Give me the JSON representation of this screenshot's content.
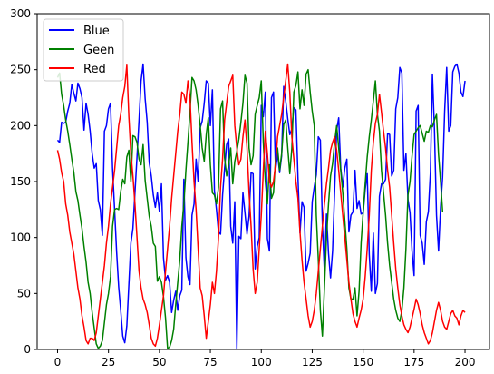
{
  "chart_data": {
    "type": "line",
    "x_start": 0,
    "x_step": 1,
    "xlim": [
      -10,
      212
    ],
    "ylim": [
      0,
      300
    ],
    "xticks": [
      0,
      25,
      50,
      75,
      100,
      125,
      150,
      175,
      200
    ],
    "yticks": [
      0,
      50,
      100,
      150,
      200,
      250,
      300
    ],
    "grid": false,
    "legend_position": "top-left",
    "series": [
      {
        "name": "Blue",
        "color": "#0000ff",
        "values": [
          187,
          185,
          203,
          202,
          203,
          213,
          220,
          237,
          229,
          222,
          238,
          233,
          225,
          196,
          220,
          210,
          195,
          175,
          162,
          166,
          133,
          125,
          102,
          195,
          200,
          215,
          220,
          162,
          125,
          87,
          56,
          35,
          12,
          6,
          21,
          58,
          95,
          108,
          140,
          172,
          205,
          240,
          255,
          224,
          203,
          167,
          155,
          138,
          127,
          140,
          123,
          148,
          82,
          62,
          66,
          60,
          33,
          44,
          52,
          35,
          48,
          53,
          152,
          82,
          65,
          58,
          120,
          130,
          170,
          150,
          198,
          204,
          220,
          240,
          238,
          200,
          232,
          142,
          125,
          105,
          103,
          138,
          162,
          183,
          188,
          110,
          95,
          132,
          0,
          101,
          99,
          140,
          122,
          103,
          119,
          158,
          157,
          72,
          92,
          100,
          218,
          208,
          230,
          99,
          88,
          225,
          230,
          160,
          175,
          158,
          173,
          235,
          222,
          206,
          192,
          197,
          216,
          214,
          154,
          104,
          132,
          127,
          70,
          77,
          86,
          132,
          145,
          156,
          190,
          187,
          112,
          70,
          121,
          86,
          64,
          88,
          141,
          196,
          207,
          162,
          145,
          162,
          170,
          105,
          120,
          123,
          160,
          126,
          133,
          121,
          122,
          143,
          157,
          85,
          52,
          104,
          50,
          59,
          137,
          148,
          148,
          152,
          193,
          192,
          155,
          160,
          215,
          225,
          252,
          247,
          160,
          175,
          134,
          122,
          88,
          66,
          213,
          218,
          102,
          95,
          76,
          114,
          123,
          158,
          246,
          196,
          120,
          88,
          127,
          154,
          213,
          252,
          195,
          200,
          248,
          253,
          255,
          247,
          230,
          226,
          240
        ]
      },
      {
        "name": "Geen",
        "color": "#008000",
        "values": [
          243,
          247,
          228,
          218,
          205,
          195,
          183,
          170,
          158,
          141,
          133,
          120,
          108,
          92,
          78,
          60,
          50,
          33,
          19,
          5,
          1,
          3,
          8,
          24,
          40,
          50,
          65,
          110,
          125,
          126,
          125,
          141,
          152,
          148,
          172,
          178,
          150,
          191,
          190,
          185,
          170,
          165,
          183,
          151,
          135,
          119,
          110,
          95,
          92,
          61,
          65,
          60,
          47,
          28,
          1,
          2,
          8,
          18,
          40,
          60,
          80,
          110,
          130,
          160,
          185,
          212,
          243,
          240,
          232,
          218,
          200,
          180,
          168,
          192,
          207,
          165,
          140,
          138,
          130,
          145,
          215,
          222,
          171,
          155,
          165,
          180,
          148,
          168,
          177,
          188,
          203,
          220,
          245,
          238,
          180,
          165,
          173,
          210,
          218,
          225,
          240,
          185,
          150,
          130,
          165,
          135,
          140,
          170,
          180,
          160,
          175,
          201,
          205,
          180,
          157,
          180,
          230,
          236,
          248,
          215,
          232,
          218,
          246,
          250,
          230,
          213,
          200,
          120,
          80,
          35,
          12,
          55,
          100,
          130,
          155,
          166,
          185,
          200,
          180,
          160,
          140,
          115,
          90,
          55,
          45,
          45,
          55,
          30,
          52,
          95,
          122,
          148,
          172,
          190,
          205,
          222,
          240,
          210,
          195,
          160,
          140,
          120,
          95,
          75,
          60,
          45,
          35,
          28,
          25,
          35,
          55,
          90,
          138,
          150,
          173,
          192,
          195,
          198,
          200,
          193,
          186,
          195,
          194,
          200,
          199,
          205,
          210,
          174,
          150,
          123
        ]
      },
      {
        "name": "Red",
        "color": "#ff0000",
        "values": [
          178,
          170,
          158,
          150,
          130,
          120,
          105,
          95,
          85,
          70,
          55,
          45,
          30,
          20,
          8,
          5,
          10,
          10,
          8,
          15,
          30,
          45,
          60,
          75,
          95,
          110,
          130,
          145,
          160,
          180,
          200,
          210,
          225,
          235,
          254,
          208,
          175,
          155,
          130,
          100,
          70,
          55,
          45,
          40,
          33,
          22,
          10,
          5,
          3,
          10,
          22,
          35,
          48,
          70,
          90,
          110,
          135,
          155,
          175,
          195,
          210,
          230,
          228,
          220,
          240,
          225,
          185,
          150,
          125,
          90,
          55,
          48,
          30,
          10,
          25,
          40,
          60,
          50,
          70,
          100,
          145,
          170,
          205,
          220,
          235,
          240,
          245,
          200,
          180,
          165,
          170,
          190,
          205,
          180,
          140,
          110,
          72,
          50,
          60,
          90,
          120,
          160,
          195,
          175,
          150,
          145,
          150,
          165,
          190,
          200,
          210,
          225,
          240,
          255,
          230,
          190,
          170,
          150,
          135,
          105,
          80,
          60,
          45,
          30,
          20,
          25,
          35,
          50,
          70,
          90,
          110,
          130,
          148,
          162,
          178,
          185,
          190,
          178,
          160,
          140,
          120,
          100,
          80,
          60,
          45,
          32,
          25,
          20,
          28,
          35,
          45,
          65,
          90,
          120,
          160,
          185,
          202,
          210,
          228,
          212,
          195,
          180,
          160,
          145,
          120,
          95,
          72,
          55,
          40,
          30,
          22,
          18,
          15,
          20,
          28,
          36,
          45,
          40,
          32,
          22,
          15,
          10,
          5,
          8,
          15,
          25,
          35,
          42,
          35,
          25,
          20,
          18,
          25,
          32,
          35,
          30,
          28,
          22,
          30,
          35,
          33
        ]
      }
    ]
  }
}
